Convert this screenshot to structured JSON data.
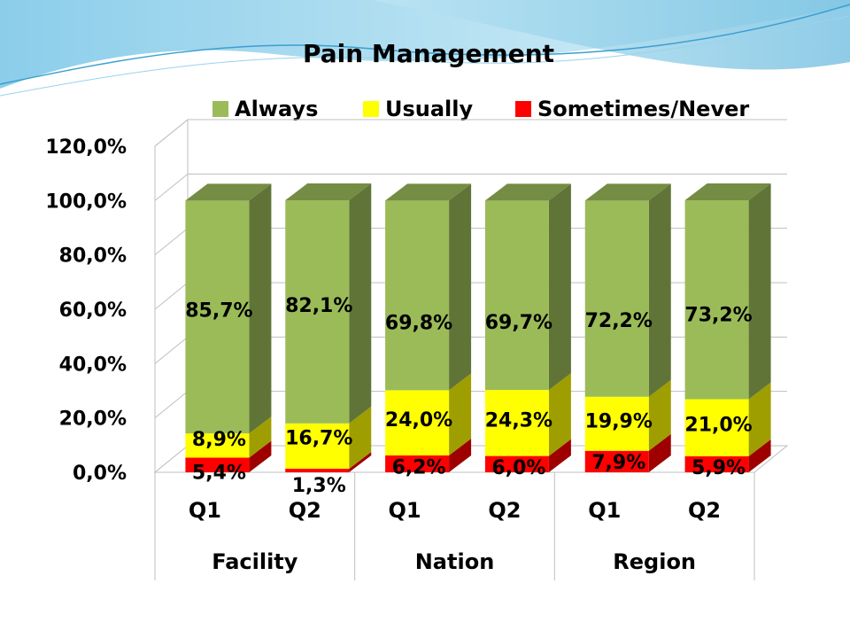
{
  "chart_data": {
    "type": "bar",
    "stacked": true,
    "title": "Pain Management",
    "categories": [
      "Q1",
      "Q2",
      "Q1",
      "Q2",
      "Q1",
      "Q2"
    ],
    "groups": [
      {
        "label": "Facility",
        "span": 2
      },
      {
        "label": "Nation",
        "span": 2
      },
      {
        "label": "Region",
        "span": 2
      }
    ],
    "series": [
      {
        "name": "Sometimes/Never",
        "color": "#ff0000",
        "values": [
          5.4,
          1.3,
          6.2,
          6.0,
          7.9,
          5.9
        ],
        "labels": [
          "5,4%",
          "1,3%",
          "6,2%",
          "6,0%",
          "7,9%",
          "5,9%"
        ]
      },
      {
        "name": "Usually",
        "color": "#ffff00",
        "values": [
          8.9,
          16.7,
          24.0,
          24.3,
          19.9,
          21.0
        ],
        "labels": [
          "8,9%",
          "16,7%",
          "24,0%",
          "24,3%",
          "19,9%",
          "21,0%"
        ]
      },
      {
        "name": "Always",
        "color": "#9bbb59",
        "values": [
          85.7,
          82.1,
          69.8,
          69.7,
          72.2,
          73.2
        ],
        "labels": [
          "85,7%",
          "82,1%",
          "69,8%",
          "69,7%",
          "72,2%",
          "73,2%"
        ]
      }
    ],
    "legend_order": [
      "Always",
      "Usually",
      "Sometimes/Never"
    ],
    "legend_position": "top",
    "ylim": [
      0,
      120
    ],
    "yticks": [
      {
        "value": 0,
        "label": "0,0%"
      },
      {
        "value": 20,
        "label": "20,0%"
      },
      {
        "value": 40,
        "label": "40,0%"
      },
      {
        "value": 60,
        "label": "60,0%"
      },
      {
        "value": 80,
        "label": "80,0%"
      },
      {
        "value": 100,
        "label": "100,0%"
      },
      {
        "value": 120,
        "label": "120,0%"
      }
    ],
    "grid": true
  }
}
